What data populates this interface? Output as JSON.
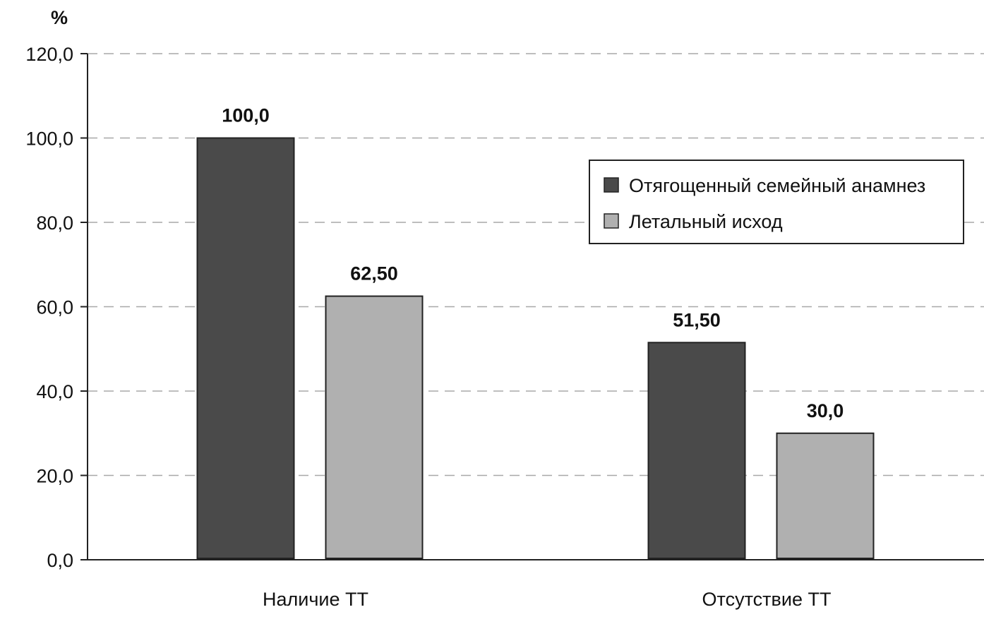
{
  "chart_data": {
    "type": "bar",
    "unit_label": "%",
    "categories": [
      "Наличие ТТ",
      "Отсутствие ТТ"
    ],
    "series": [
      {
        "name": "Отягощенный семейный анамнез",
        "color": "#4a4a4a",
        "values": [
          100.0,
          51.5
        ],
        "value_labels": [
          "100,0",
          "51,50"
        ]
      },
      {
        "name": "Летальный исход",
        "color": "#b0b0b0",
        "values": [
          62.5,
          30.0
        ],
        "value_labels": [
          "62,50",
          "30,0"
        ]
      }
    ],
    "ylim": [
      0,
      120
    ],
    "yticks": [
      0,
      20,
      40,
      60,
      80,
      100,
      120
    ],
    "ytick_labels": [
      "0,0",
      "20,0",
      "40,0",
      "60,0",
      "80,0",
      "100,0",
      "120,0"
    ],
    "grid": true,
    "legend_position": "top-right"
  }
}
